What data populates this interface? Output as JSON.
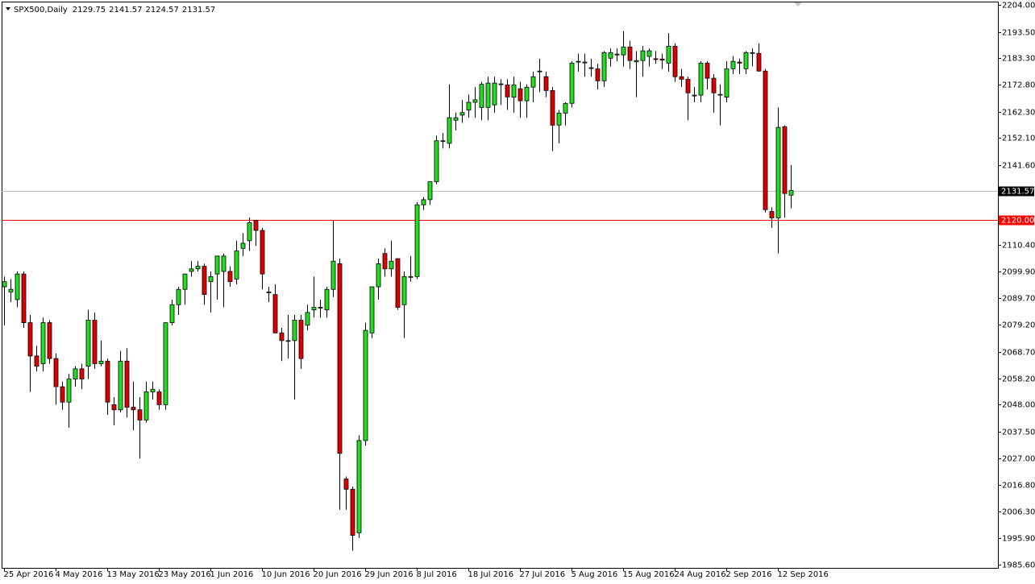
{
  "chart_data": {
    "type": "candlestick",
    "title": "SPX500,Daily",
    "ohlc_header": [
      2129.75,
      2141.57,
      2124.57,
      2131.57
    ],
    "up_color": "#22dd22",
    "down_color": "#dd0000",
    "categories": [
      "25 Apr 2016",
      null,
      null,
      null,
      null,
      null,
      null,
      null,
      "4 May 2016",
      null,
      null,
      null,
      null,
      null,
      null,
      null,
      "13 May 2016",
      null,
      null,
      null,
      null,
      null,
      null,
      null,
      "23 May 2016",
      null,
      null,
      null,
      null,
      null,
      null,
      null,
      "1 Jun 2016",
      null,
      null,
      null,
      null,
      null,
      null,
      null,
      "10 Jun 2016",
      null,
      null,
      null,
      null,
      null,
      null,
      null,
      "20 Jun 2016",
      null,
      null,
      null,
      null,
      null,
      null,
      null,
      "29 Jun 2016",
      null,
      null,
      null,
      null,
      null,
      null,
      null,
      "8 Jul 2016",
      null,
      null,
      null,
      null,
      null,
      null,
      null,
      "18 Jul 2016",
      null,
      null,
      null,
      null,
      null,
      null,
      null,
      "27 Jul 2016",
      null,
      null,
      null,
      null,
      null,
      null,
      null,
      "5 Aug 2016",
      null,
      null,
      null,
      null,
      null,
      null,
      null,
      "15 Aug 2016",
      null,
      null,
      null,
      null,
      null,
      null,
      null,
      "24 Aug 2016",
      null,
      null,
      null,
      null,
      null,
      null,
      null,
      "2 Sep 2016",
      null,
      null,
      null,
      null,
      null,
      null,
      null,
      "12 Sep 2016",
      null,
      null
    ],
    "open": [
      2094,
      2092,
      2089,
      2099,
      2080,
      2067,
      2064,
      2080,
      2066,
      2055,
      2049,
      2058,
      2062,
      2063,
      2081,
      2064,
      2065,
      2048,
      2046,
      2065,
      2047,
      2046,
      2042,
      2053,
      2053,
      2048,
      2080,
      2087,
      2093,
      2100,
      2101,
      2102,
      2096,
      2099,
      2100,
      2100,
      2097,
      2109,
      2112,
      2120,
      2116,
      2092,
      2091,
      2076,
      2073,
      2073,
      2081,
      2079,
      2085,
      2086,
      2085,
      2093,
      2103,
      2019,
      2015,
      1998,
      2034,
      2076,
      2094,
      2107,
      2101,
      2105,
      2087,
      2098,
      2098,
      2126,
      2128,
      2135,
      2151,
      2150,
      2159,
      2161,
      2163,
      2166,
      2164,
      2164,
      2165,
      2173,
      2172.8,
      2168,
      2171.3,
      2166.6,
      2171.9,
      2178,
      2176,
      2170.6,
      2157.1,
      2161.8,
      2165.6,
      2182,
      2181.7,
      2179.5,
      2179.1,
      2174.4,
      2183.2,
      2184.8,
      2184.5,
      2187.6,
      2181.8,
      2182.3,
      2183.9,
      2183,
      2182.9,
      2181.3,
      2187.9,
      2176,
      2175,
      2168.8,
      2168.8,
      2181.3,
      2175.4,
      2169.1,
      2168,
      2179.1,
      2181.7,
      2179.1,
      2185.1,
      2185.1,
      2178.2,
      2123.4,
      2120.9,
      2156.5,
      2129.75
    ],
    "high": [
      2098,
      2097,
      2100,
      2100,
      2083,
      2071,
      2082,
      2081,
      2068,
      2057,
      2060,
      2063,
      2064,
      2085,
      2084,
      2073,
      2066,
      2051,
      2069,
      2070,
      2057,
      2051,
      2057,
      2057,
      2054,
      2080,
      2089,
      2094,
      2099,
      2104,
      2104,
      2103,
      2100,
      2106,
      2107,
      2102,
      2112,
      2115,
      2121,
      2120,
      2117,
      2094,
      2095,
      2078,
      2083,
      2083,
      2083,
      2087,
      2098,
      2089,
      2094,
      2120,
      2105,
      2020,
      2016,
      2036,
      2080,
      2094,
      2105,
      2109,
      2112,
      2105,
      2100,
      2106,
      2127,
      2129,
      2135,
      2153,
      2154,
      2173,
      2162,
      2167,
      2169,
      2172,
      2174,
      2176,
      2176,
      2175,
      2175,
      2176,
      2174,
      2173,
      2178,
      2183,
      2178,
      2172,
      2163,
      2166,
      2182,
      2185,
      2185,
      2183,
      2181,
      2186,
      2187,
      2187,
      2193.8,
      2190,
      2186,
      2188,
      2187,
      2186,
      2185,
      2193,
      2189,
      2179,
      2176,
      2172,
      2182,
      2182,
      2177,
      2173,
      2182,
      2184,
      2183,
      2186,
      2187,
      2189,
      2179,
      2125,
      2164,
      2157,
      2141.57
    ],
    "low": [
      2079,
      2088,
      2086,
      2078,
      2053,
      2061,
      2061,
      2064,
      2048,
      2046,
      2039,
      2055,
      2054,
      2058,
      2062,
      2063,
      2044,
      2040,
      2045,
      2043,
      2038,
      2027,
      2041,
      2050,
      2046,
      2046,
      2079,
      2083,
      2087,
      2098,
      2100,
      2087,
      2084,
      2089,
      2086,
      2094,
      2095,
      2106,
      2108,
      2110,
      2093,
      2088,
      2077,
      2065,
      2066,
      2050,
      2062,
      2077,
      2082,
      2082,
      2082,
      2090,
      2007,
      2007,
      1991,
      1996,
      2032,
      2074,
      2089,
      2098,
      2098,
      2085,
      2074,
      2096,
      2097,
      2124,
      2126,
      2134,
      2148,
      2148,
      2155,
      2158,
      2160,
      2160,
      2159,
      2159,
      2162,
      2165,
      2163,
      2162,
      2160,
      2160,
      2166,
      2170,
      2168,
      2147,
      2150,
      2157,
      2164,
      2178,
      2176,
      2176,
      2171,
      2172,
      2180,
      2182,
      2180,
      2179,
      2168,
      2176,
      2180,
      2181,
      2179,
      2178,
      2174,
      2172,
      2159,
      2166,
      2166,
      2171,
      2162,
      2157,
      2166,
      2177,
      2177,
      2177,
      2180,
      2178,
      2123,
      2117,
      2107,
      2121,
      2124.57
    ],
    "close": [
      2096,
      2093,
      2099,
      2080,
      2067,
      2063,
      2080,
      2066,
      2055,
      2049,
      2058,
      2062,
      2058,
      2081,
      2064,
      2065,
      2049,
      2046,
      2065,
      2047,
      2046,
      2042,
      2053,
      2054,
      2048,
      2080,
      2087,
      2093,
      2099,
      2101,
      2102,
      2091,
      2098,
      2106,
      2106,
      2096,
      2108,
      2111,
      2119,
      2116,
      2099,
      2092,
      2076,
      2073,
      2073,
      2081,
      2066,
      2084,
      2086,
      2086,
      2093,
      2104,
      2029,
      2015,
      1997,
      2034,
      2077,
      2094,
      2103,
      2101,
      2104,
      2086,
      2098,
      2098,
      2126,
      2128,
      2135,
      2151,
      2151,
      2160,
      2160,
      2162,
      2166,
      2167,
      2173,
      2173.5,
      2173.5,
      2173.2,
      2168.1,
      2172.8,
      2166.6,
      2171.9,
      2176,
      2178.2,
      2170.6,
      2157.1,
      2161.8,
      2165.6,
      2181.3,
      2182,
      2181.7,
      2179.5,
      2174.4,
      2185.4,
      2185.4,
      2184.8,
      2187.6,
      2182.3,
      2182.3,
      2186.1,
      2186.1,
      2182.9,
      2182.5,
      2187.9,
      2176,
      2175,
      2169.7,
      2168.8,
      2181.3,
      2175.4,
      2169.7,
      2169.1,
      2179.1,
      2182,
      2181.3,
      2185.4,
      2185.4,
      2178.2,
      2124.1,
      2120.9,
      2156.2,
      2130.4,
      2131.57
    ],
    "ylim": [
      1984.3,
      2205.3
    ],
    "yticks": [
      {
        "value": 2204,
        "label": "2204.00"
      },
      {
        "value": 2193.5,
        "label": "2193.50"
      },
      {
        "value": 2183.3,
        "label": "2183.30"
      },
      {
        "value": 2172.8,
        "label": "2172.80"
      },
      {
        "value": 2162.3,
        "label": "2162.30"
      },
      {
        "value": 2152.1,
        "label": "2152.10"
      },
      {
        "value": 2141.6,
        "label": "2141.60"
      },
      {
        "value": 2110.4,
        "label": "2110.40"
      },
      {
        "value": 2099.9,
        "label": "2099.90"
      },
      {
        "value": 2089.7,
        "label": "2089.70"
      },
      {
        "value": 2079.2,
        "label": "2079.20"
      },
      {
        "value": 2068.7,
        "label": "2068.70"
      },
      {
        "value": 2058.2,
        "label": "2058.20"
      },
      {
        "value": 2048,
        "label": "2048.00"
      },
      {
        "value": 2037.5,
        "label": "2037.50"
      },
      {
        "value": 2027,
        "label": "2027.00"
      },
      {
        "value": 2016.8,
        "label": "2016.80"
      },
      {
        "value": 2006.3,
        "label": "2006.30"
      },
      {
        "value": 1995.9,
        "label": "1995.90"
      },
      {
        "value": 1985.6,
        "label": "1985.60"
      }
    ],
    "price_line": {
      "value": 2131.57,
      "color": "#c0c0c0"
    },
    "level_line": {
      "value": 2120,
      "label": "2120.00",
      "color": "#ff0000"
    }
  }
}
